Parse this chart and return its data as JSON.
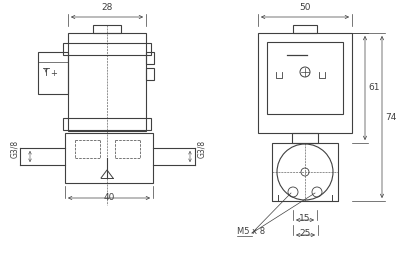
{
  "bg_color": "#ffffff",
  "line_color": "#404040",
  "fig_width": 4.0,
  "fig_height": 2.75,
  "dpi": 100,
  "annotations": {
    "dim_28": "28",
    "dim_40": "40",
    "dim_50": "50",
    "dim_61": "61",
    "dim_74": "74",
    "dim_15": "15",
    "dim_25": "25",
    "label_G38_left": "G3/8",
    "label_G38_right": "G3/8",
    "label_M5x8": "M5 x 8"
  }
}
